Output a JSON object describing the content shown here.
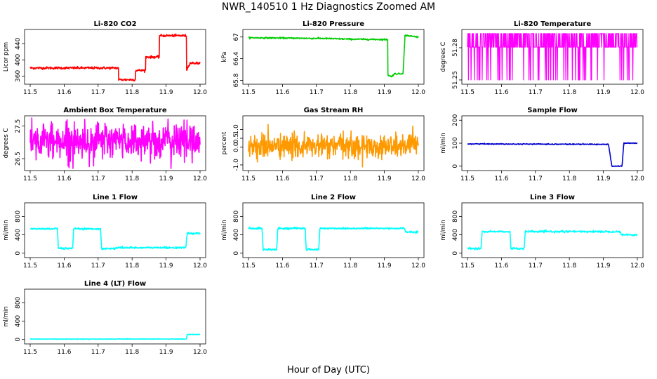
{
  "figure": {
    "title": "NWR_140510  1 Hz Diagnostics Zoomed AM",
    "xlabel": "Hour of Day (UTC)"
  },
  "chart_data": [
    {
      "type": "line",
      "title": "Li-820 CO2",
      "ylabel": "Licor ppm",
      "color": "#ff0000",
      "xlim": [
        11.5,
        12.0
      ],
      "xticks": [
        11.5,
        11.6,
        11.7,
        11.8,
        11.9,
        12.0
      ],
      "ylim": [
        345,
        470
      ],
      "yticks": [
        360,
        400,
        440
      ],
      "noise": 1.5,
      "series": [
        {
          "x": [
            11.5,
            11.76,
            11.76,
            11.81,
            11.81,
            11.84,
            11.84,
            11.88,
            11.88,
            11.96,
            11.96,
            11.97,
            12.0
          ],
          "values": [
            380,
            380,
            351,
            351,
            374,
            374,
            407,
            407,
            460,
            460,
            374,
            392,
            392
          ]
        }
      ]
    },
    {
      "type": "line",
      "title": "Li-820 Pressure",
      "ylabel": "kPa",
      "color": "#00cc00",
      "xlim": [
        11.5,
        12.0
      ],
      "xticks": [
        11.5,
        11.6,
        11.7,
        11.8,
        11.9,
        12.0
      ],
      "ylim": [
        65.75,
        67.15
      ],
      "yticks": [
        65.8,
        66.4,
        67.0
      ],
      "noise": 0.01,
      "series": [
        {
          "x": [
            11.5,
            11.72,
            11.8,
            11.91,
            11.91,
            11.92,
            11.93,
            11.95,
            11.955,
            11.96,
            11.96,
            11.965,
            12.0
          ],
          "values": [
            66.98,
            66.96,
            66.94,
            66.93,
            65.95,
            65.9,
            65.98,
            65.98,
            66.0,
            66.9,
            67.04,
            67.04,
            67.0
          ]
        }
      ]
    },
    {
      "type": "line",
      "title": "Li-820 Temperature",
      "ylabel": "degrees C",
      "color": "#ff00ff",
      "xlim": [
        11.5,
        12.0
      ],
      "xticks": [
        11.5,
        11.6,
        11.7,
        11.8,
        11.9,
        12.0
      ],
      "ylim": [
        51.248,
        51.295
      ],
      "yticks": [
        51.25,
        51.28
      ],
      "discrete": true,
      "levels": [
        51.25,
        51.2806,
        51.2931
      ],
      "noise": 0,
      "series": [
        {
          "x": [
            11.5,
            12.0
          ],
          "values": [
            51.2806,
            51.2806
          ]
        }
      ]
    },
    {
      "type": "line",
      "title": "Ambient Box Temperature",
      "ylabel": "degrees C",
      "color": "#ff00ff",
      "xlim": [
        11.5,
        12.0
      ],
      "xticks": [
        11.5,
        11.6,
        11.7,
        11.8,
        11.9,
        12.0
      ],
      "ylim": [
        26.2,
        27.75
      ],
      "yticks": [
        26.5,
        27.5
      ],
      "noise": 0.28,
      "series": [
        {
          "x": [
            11.5,
            12.0
          ],
          "values": [
            27.05,
            27.05
          ]
        }
      ]
    },
    {
      "type": "line",
      "title": "Gas Stream RH",
      "ylabel": "percent",
      "color": "#ff9900",
      "xlim": [
        11.5,
        12.0
      ],
      "xticks": [
        11.5,
        11.6,
        11.7,
        11.8,
        11.9,
        12.0
      ],
      "ylim": [
        -1.2,
        1.65
      ],
      "yticks": [
        -1.0,
        0.0,
        0.5,
        1.0
      ],
      "noise": 0.35,
      "series": [
        {
          "x": [
            11.5,
            12.0
          ],
          "values": [
            0.05,
            0.05
          ]
        }
      ]
    },
    {
      "type": "line",
      "title": "Sample Flow",
      "ylabel": "ml/min",
      "color": "#0000cc",
      "xlim": [
        11.5,
        12.0
      ],
      "xticks": [
        11.5,
        11.6,
        11.7,
        11.8,
        11.9,
        12.0
      ],
      "ylim": [
        -10,
        210
      ],
      "yticks": [
        0,
        100,
        200
      ],
      "noise": 1,
      "series": [
        {
          "x": [
            11.5,
            11.915,
            11.925,
            11.955,
            11.96,
            12.0
          ],
          "values": [
            97,
            95,
            0,
            0,
            100,
            100
          ]
        }
      ]
    },
    {
      "type": "line",
      "title": "Line 1 Flow",
      "ylabel": "ml/min",
      "color": "#00ffff",
      "xlim": [
        11.5,
        12.0
      ],
      "xticks": [
        11.5,
        11.6,
        11.7,
        11.8,
        11.9,
        12.0
      ],
      "ylim": [
        -50,
        1050
      ],
      "yticks": [
        0,
        400,
        800
      ],
      "noise": 10,
      "series": [
        {
          "x": [
            11.5,
            11.58,
            11.583,
            11.625,
            11.628,
            11.707,
            11.71,
            11.75,
            11.752,
            11.958,
            11.962,
            12.0
          ],
          "values": [
            530,
            530,
            100,
            100,
            530,
            530,
            100,
            100,
            120,
            120,
            430,
            430
          ]
        }
      ]
    },
    {
      "type": "line",
      "title": "Line 2 Flow",
      "ylabel": "ml/min",
      "color": "#00ffff",
      "xlim": [
        11.5,
        12.0
      ],
      "xticks": [
        11.5,
        11.6,
        11.7,
        11.8,
        11.9,
        12.0
      ],
      "ylim": [
        -50,
        1050
      ],
      "yticks": [
        0,
        400,
        800
      ],
      "noise": 10,
      "series": [
        {
          "x": [
            11.5,
            11.54,
            11.543,
            11.583,
            11.586,
            11.667,
            11.67,
            11.707,
            11.71,
            11.96,
            11.962,
            12.0
          ],
          "values": [
            540,
            540,
            80,
            80,
            540,
            540,
            80,
            80,
            540,
            540,
            460,
            460
          ]
        }
      ]
    },
    {
      "type": "line",
      "title": "Line 3 Flow",
      "ylabel": "ml/min",
      "color": "#00ffff",
      "xlim": [
        11.5,
        12.0
      ],
      "xticks": [
        11.5,
        11.6,
        11.7,
        11.8,
        11.9,
        12.0
      ],
      "ylim": [
        -50,
        1050
      ],
      "yticks": [
        0,
        400,
        800
      ],
      "noise": 10,
      "series": [
        {
          "x": [
            11.5,
            11.54,
            11.543,
            11.625,
            11.628,
            11.667,
            11.67,
            11.95,
            11.953,
            12.0
          ],
          "values": [
            100,
            100,
            470,
            470,
            100,
            100,
            470,
            470,
            400,
            400
          ]
        }
      ]
    },
    {
      "type": "line",
      "title": "Line 4 (LT) Flow",
      "ylabel": "ml/min",
      "color": "#00ffff",
      "xlim": [
        11.5,
        12.0
      ],
      "xticks": [
        11.5,
        11.6,
        11.7,
        11.8,
        11.9,
        12.0
      ],
      "ylim": [
        -50,
        1050
      ],
      "yticks": [
        0,
        400,
        800
      ],
      "noise": 3,
      "series": [
        {
          "x": [
            11.5,
            11.96,
            11.962,
            12.0
          ],
          "values": [
            10,
            10,
            110,
            110
          ]
        }
      ]
    }
  ]
}
